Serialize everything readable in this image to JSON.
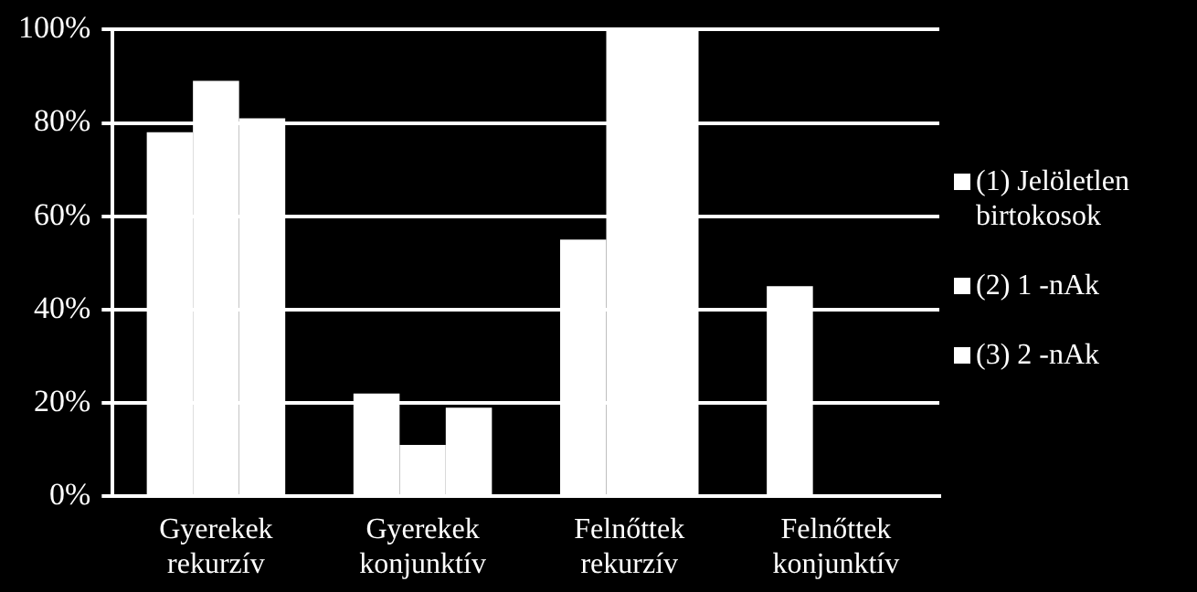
{
  "chart_data": {
    "type": "bar",
    "categories": [
      "Gyerekek rekurzív",
      "Gyerekek konjunktív",
      "Felnőttek rekurzív",
      "Felnőttek konjunktív"
    ],
    "series": [
      {
        "name": "(1) Jelöletlen birtokosok",
        "color": "#ffffff",
        "values": [
          78,
          22,
          55,
          45
        ]
      },
      {
        "name": "(2) 1 -nAk",
        "color": "#ffffff",
        "values": [
          89,
          11,
          100,
          0
        ]
      },
      {
        "name": "(3) 2 -nAk",
        "color": "#ffffff",
        "values": [
          81,
          19,
          100,
          0
        ]
      }
    ],
    "ylim": [
      0,
      100
    ],
    "yticks": [
      {
        "value": 0,
        "label": "0%"
      },
      {
        "value": 20,
        "label": "20%"
      },
      {
        "value": 40,
        "label": "40%"
      },
      {
        "value": 60,
        "label": "60%"
      },
      {
        "value": 80,
        "label": "80%"
      },
      {
        "value": 100,
        "label": "100%"
      }
    ],
    "grid": "y",
    "legend": "right"
  }
}
